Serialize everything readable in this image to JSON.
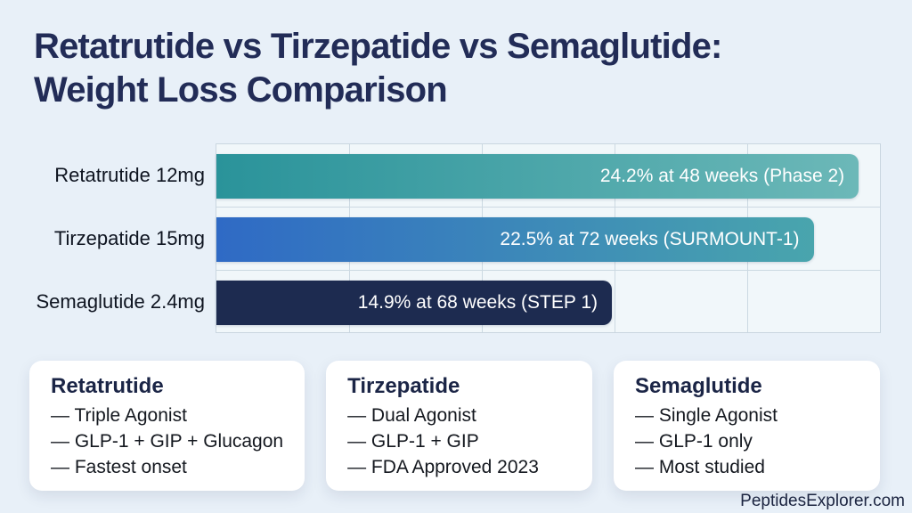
{
  "header": {
    "title_line1": "Retatrutide vs Tirzepatide vs Semaglutide:",
    "title_line2": "Weight Loss Comparison"
  },
  "chart_data": {
    "type": "bar",
    "orientation": "horizontal",
    "title": "Retatrutide vs Tirzepatide vs Semaglutide: Weight Loss Comparison",
    "xlabel": "",
    "ylabel": "",
    "xlim": [
      0,
      25
    ],
    "gridline_interval": 5,
    "grid": true,
    "categories": [
      "Retatrutide 12mg",
      "Tirzepatide 15mg",
      "Semaglutide 2.4mg"
    ],
    "values": [
      24.2,
      22.5,
      14.9
    ],
    "bar_labels": [
      "24.2% at 48 weeks (Phase 2)",
      "22.5% at 72 weeks (SURMOUNT-1)",
      "14.9% at 68 weeks (STEP 1)"
    ],
    "bar_colors": [
      {
        "from": "#2a939a",
        "to": "#6cb8b8"
      },
      {
        "from": "#2f6ac5",
        "to": "#49a5ad"
      },
      {
        "color": "#1d2b50"
      }
    ],
    "plot_background": "#f1f7fa",
    "gridline_color": "#ccd9e2"
  },
  "cards": [
    {
      "title": "Retatrutide",
      "lines": [
        "— Triple Agonist",
        "— GLP-1 + GIP + Glucagon",
        "— Fastest onset"
      ]
    },
    {
      "title": "Tirzepatide",
      "lines": [
        "— Dual Agonist",
        "— GLP-1 + GIP",
        "— FDA Approved 2023"
      ]
    },
    {
      "title": "Semaglutide",
      "lines": [
        "— Single Agonist",
        "— GLP-1 only",
        "— Most studied"
      ]
    }
  ],
  "footer": {
    "site": "PeptidesExplorer.com"
  },
  "colors": {
    "page_background": "#e8f0f8",
    "title_text": "#222c57",
    "bar_text": "#ffffff",
    "card_title_text": "#1b2546"
  }
}
